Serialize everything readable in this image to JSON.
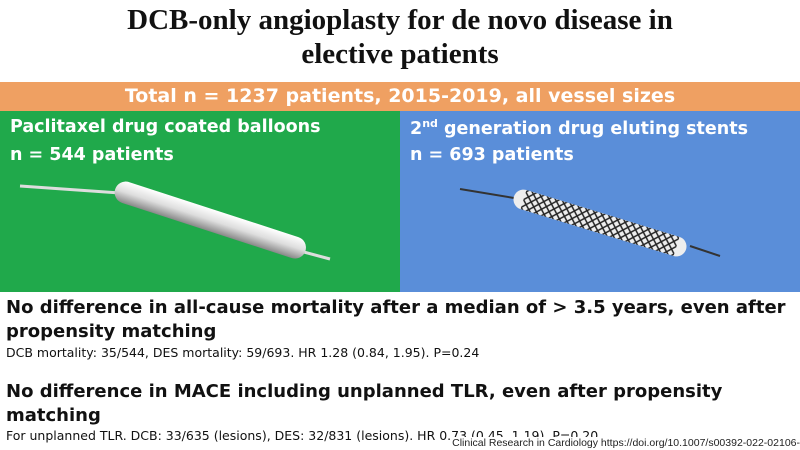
{
  "header": {
    "title_line1": "DCB-only angioplasty for de novo disease in",
    "title_line2": "elective patients"
  },
  "banner": "Total n = 1237 patients, 2015-2019, all vessel sizes",
  "panels": [
    {
      "heading": "Paclitaxel drug coated balloons",
      "count": "n = 544 patients"
    },
    {
      "heading_number": "2",
      "heading_sup": "nd",
      "heading_rest": "generation drug eluting stents",
      "count": "n = 693 patients"
    }
  ],
  "findings": [
    {
      "headline": "No difference in all-cause mortality after a median of > 3.5 years, even after propensity matching",
      "detail": "DCB mortality: 35/544, DES mortality: 59/693. HR 1.28 (0.84, 1.95). P=0.24"
    },
    {
      "headline": "No difference in MACE including unplanned TLR, even after propensity matching",
      "detail": "For unplanned TLR. DCB: 33/635 (lesions), DES: 32/831 (lesions). HR 0.73 (0.45, 1.19). P=0.20"
    }
  ],
  "citation": "Clinical Research in Cardiology https://doi.org/10.1007/s00392-022-02106-"
}
